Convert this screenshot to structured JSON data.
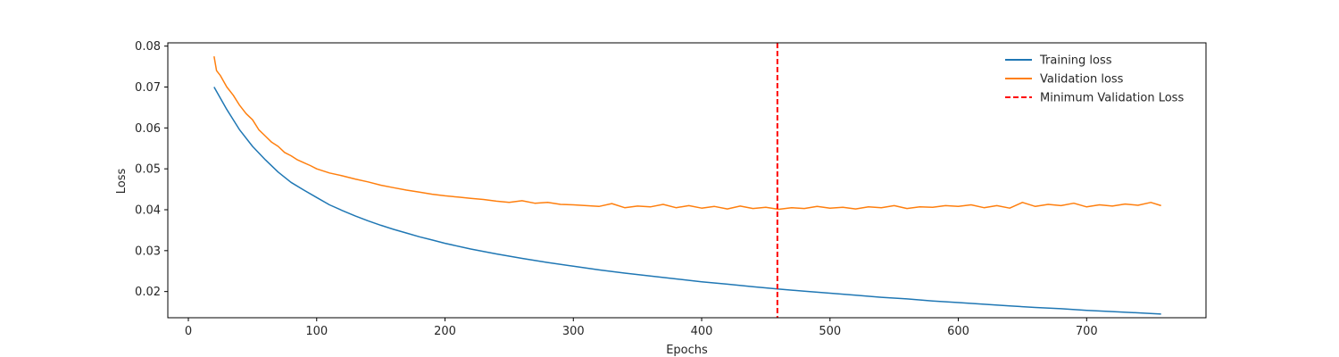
{
  "chart_data": {
    "type": "line",
    "title": "",
    "xlabel": "Epochs",
    "ylabel": "Loss",
    "xlim": [
      -16,
      793
    ],
    "ylim": [
      0.0136,
      0.0808
    ],
    "xticks": [
      0,
      100,
      200,
      300,
      400,
      500,
      600,
      700
    ],
    "yticks": [
      0.02,
      0.03,
      0.04,
      0.05,
      0.06,
      0.07,
      0.08
    ],
    "grid": false,
    "legend_position": "upper-right",
    "series": [
      {
        "name": "Training loss",
        "color": "#1f77b4",
        "style": "solid",
        "x": [
          20,
          30,
          40,
          50,
          60,
          70,
          80,
          90,
          100,
          110,
          120,
          130,
          140,
          150,
          160,
          170,
          180,
          190,
          200,
          220,
          240,
          260,
          280,
          300,
          320,
          340,
          360,
          380,
          400,
          420,
          440,
          460,
          480,
          500,
          520,
          540,
          560,
          580,
          600,
          620,
          640,
          660,
          680,
          700,
          720,
          740,
          758
        ],
        "y": [
          0.07,
          0.0645,
          0.0595,
          0.0555,
          0.0522,
          0.0492,
          0.0467,
          0.0448,
          0.043,
          0.0412,
          0.0398,
          0.0385,
          0.0373,
          0.0362,
          0.0352,
          0.0343,
          0.0334,
          0.0326,
          0.0318,
          0.0304,
          0.0292,
          0.0281,
          0.0271,
          0.0262,
          0.0253,
          0.0245,
          0.0238,
          0.0231,
          0.0224,
          0.0218,
          0.0212,
          0.0206,
          0.0201,
          0.0196,
          0.0191,
          0.0186,
          0.0182,
          0.0177,
          0.0173,
          0.0169,
          0.0165,
          0.0161,
          0.0158,
          0.0154,
          0.0151,
          0.0148,
          0.0145
        ]
      },
      {
        "name": "Validation loss",
        "color": "#ff7f0e",
        "style": "solid",
        "x": [
          20,
          22,
          25,
          30,
          35,
          40,
          45,
          50,
          55,
          60,
          65,
          70,
          75,
          80,
          85,
          90,
          95,
          100,
          110,
          120,
          130,
          140,
          150,
          160,
          170,
          180,
          190,
          200,
          210,
          220,
          230,
          240,
          250,
          260,
          270,
          280,
          290,
          300,
          310,
          320,
          330,
          340,
          350,
          360,
          370,
          380,
          390,
          400,
          410,
          420,
          430,
          440,
          450,
          460,
          470,
          480,
          490,
          500,
          510,
          520,
          530,
          540,
          550,
          560,
          570,
          580,
          590,
          600,
          610,
          620,
          630,
          640,
          650,
          660,
          670,
          680,
          690,
          700,
          710,
          720,
          730,
          740,
          750,
          758
        ],
        "y": [
          0.0775,
          0.074,
          0.0728,
          0.07,
          0.068,
          0.0655,
          0.0635,
          0.062,
          0.0595,
          0.058,
          0.0565,
          0.0555,
          0.054,
          0.0532,
          0.0522,
          0.0515,
          0.0508,
          0.05,
          0.049,
          0.0483,
          0.0475,
          0.0468,
          0.046,
          0.0454,
          0.0448,
          0.0443,
          0.0438,
          0.0434,
          0.0431,
          0.0428,
          0.0425,
          0.0421,
          0.0418,
          0.0422,
          0.0416,
          0.0418,
          0.0413,
          0.0412,
          0.041,
          0.0408,
          0.0415,
          0.0405,
          0.0409,
          0.0407,
          0.0413,
          0.0405,
          0.041,
          0.0404,
          0.0408,
          0.0402,
          0.0409,
          0.0403,
          0.0406,
          0.0401,
          0.0405,
          0.0403,
          0.0408,
          0.0404,
          0.0406,
          0.0402,
          0.0407,
          0.0405,
          0.041,
          0.0403,
          0.0407,
          0.0406,
          0.041,
          0.0408,
          0.0412,
          0.0405,
          0.041,
          0.0404,
          0.0418,
          0.0408,
          0.0413,
          0.041,
          0.0416,
          0.0407,
          0.0412,
          0.0409,
          0.0414,
          0.0411,
          0.0418,
          0.041
        ]
      }
    ],
    "vlines": [
      {
        "name": "Minimum Validation Loss",
        "x": 459,
        "color": "#ff0000",
        "style": "dashed"
      }
    ]
  }
}
